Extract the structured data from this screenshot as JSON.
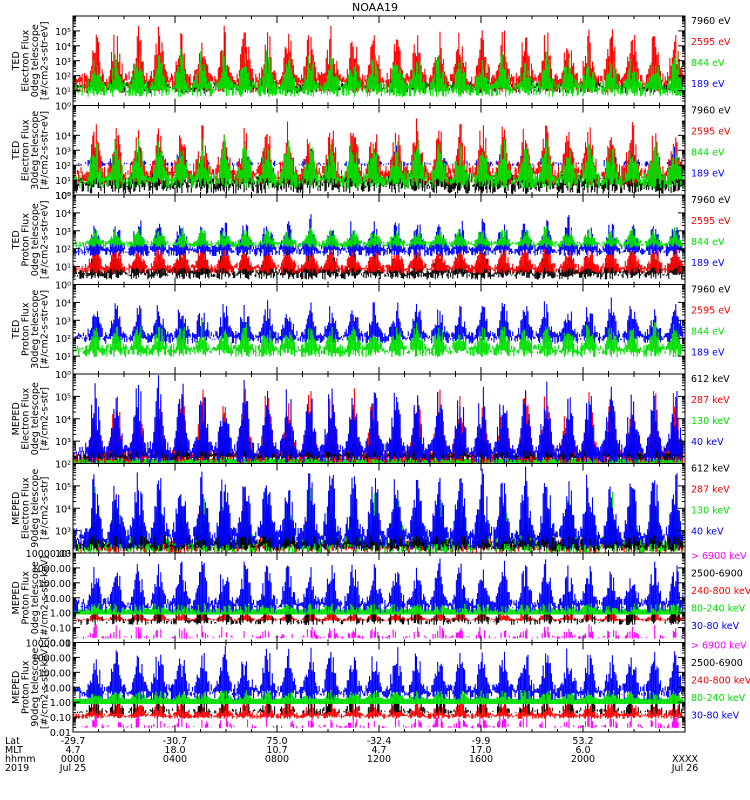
{
  "title": "NOAA19",
  "colors": {
    "black": "#000000",
    "red": "#ff0000",
    "green": "#00e000",
    "blue": "#0000ff",
    "magenta": "#ff00ff"
  },
  "chart_data": [
    {
      "type": "line",
      "ylabel": [
        "TED",
        "Electron Flux",
        "0deg telescope",
        "[#/cm2-s-str-eV]"
      ],
      "log": true,
      "ylim": [
        1,
        1000000
      ],
      "ticks": [
        {
          "v": 1,
          "label": "10⁰"
        },
        {
          "v": 10,
          "label": "10¹"
        },
        {
          "v": 100,
          "label": "10²"
        },
        {
          "v": 1000,
          "label": "10³"
        },
        {
          "v": 10000,
          "label": "10⁴"
        },
        {
          "v": 100000,
          "label": "10⁵"
        }
      ],
      "legend": [
        {
          "name": "7960 eV",
          "color": "#000000"
        },
        {
          "name": "2595 eV",
          "color": "#ff0000"
        },
        {
          "name": "844 eV",
          "color": "#00e000"
        },
        {
          "name": "189 eV",
          "color": "#0000ff"
        }
      ],
      "series": [
        {
          "color": "#000000",
          "base": 12,
          "peak": 400,
          "spread": 0.8
        },
        {
          "color": "#ff0000",
          "base": 20,
          "peak": 60000,
          "spread": 0.55
        },
        {
          "color": "#00e000",
          "base": 8,
          "peak": 2000,
          "spread": 0.6
        }
      ]
    },
    {
      "type": "line",
      "ylabel": [
        "TED",
        "Electron Flux",
        "30deg telescope",
        "[#/cm2-s-str-eV]"
      ],
      "log": true,
      "ylim": [
        1,
        1000000
      ],
      "ticks": [
        {
          "v": 1,
          "label": "10⁰"
        },
        {
          "v": 10,
          "label": "10¹"
        },
        {
          "v": 100,
          "label": "10²"
        },
        {
          "v": 1000,
          "label": "10³"
        },
        {
          "v": 10000,
          "label": "10⁴"
        }
      ],
      "legend": [
        {
          "name": "7960 eV",
          "color": "#000000"
        },
        {
          "name": "2595 eV",
          "color": "#ff0000"
        },
        {
          "name": "844 eV",
          "color": "#00e000"
        },
        {
          "name": "189 eV",
          "color": "#0000ff"
        }
      ],
      "series": [
        {
          "color": "#0000ff",
          "base": 100,
          "peak": 2000,
          "spread": 0.3,
          "sparse": true
        },
        {
          "color": "#000000",
          "base": 3,
          "peak": 300,
          "spread": 0.9
        },
        {
          "color": "#ff0000",
          "base": 12,
          "peak": 30000,
          "spread": 0.55
        },
        {
          "color": "#00e000",
          "base": 6,
          "peak": 3000,
          "spread": 0.6
        }
      ]
    },
    {
      "type": "line",
      "ylabel": [
        "TED",
        "Proton Flux",
        "0deg telescope",
        "[#/cm2-s-str-eV]"
      ],
      "log": true,
      "ylim": [
        1,
        100000
      ],
      "ticks": [
        {
          "v": 1,
          "label": "10⁰"
        },
        {
          "v": 10,
          "label": "10¹"
        },
        {
          "v": 100,
          "label": "10²"
        },
        {
          "v": 1000,
          "label": "10³"
        },
        {
          "v": 10000,
          "label": "10⁴"
        },
        {
          "v": 100000,
          "label": "10⁵"
        }
      ],
      "legend": [
        {
          "name": "7960 eV",
          "color": "#000000"
        },
        {
          "name": "2595 eV",
          "color": "#ff0000"
        },
        {
          "name": "844 eV",
          "color": "#00e000"
        },
        {
          "name": "189 eV",
          "color": "#0000ff"
        }
      ],
      "series": [
        {
          "color": "#000000",
          "base": 3,
          "peak": 60,
          "spread": 0.7
        },
        {
          "color": "#ff0000",
          "base": 6,
          "peak": 200,
          "spread": 0.5
        },
        {
          "color": "#0000ff",
          "base": 60,
          "peak": 4000,
          "spread": 0.5
        },
        {
          "color": "#00e000",
          "base": 150,
          "peak": 1200,
          "spread": 0.45,
          "dense": true
        }
      ]
    },
    {
      "type": "line",
      "ylabel": [
        "TED",
        "Proton Flux",
        "30deg telescope",
        "[#/cm2-s-str-eV]"
      ],
      "log": true,
      "ylim": [
        1,
        100000
      ],
      "ticks": [
        {
          "v": 1,
          "label": "10⁰"
        },
        {
          "v": 10,
          "label": "10¹"
        },
        {
          "v": 100,
          "label": "10²"
        },
        {
          "v": 1000,
          "label": "10³"
        },
        {
          "v": 10000,
          "label": "10⁴"
        }
      ],
      "legend": [
        {
          "name": "7960 eV",
          "color": "#000000"
        },
        {
          "name": "2595 eV",
          "color": "#ff0000"
        },
        {
          "name": "844 eV",
          "color": "#00e000"
        },
        {
          "name": "189 eV",
          "color": "#0000ff"
        }
      ],
      "series": [
        {
          "color": "#0000ff",
          "base": 80,
          "peak": 8000,
          "spread": 0.5
        },
        {
          "color": "#00e000",
          "base": 15,
          "peak": 400,
          "spread": 0.55,
          "dense": true
        }
      ]
    },
    {
      "type": "line",
      "ylabel": [
        "MEPED",
        "Electron Flux",
        "0deg telescope",
        "[#/cm2-s-str]"
      ],
      "log": true,
      "ylim": [
        100,
        1000000
      ],
      "ticks": [
        {
          "v": 100,
          "label": "10²"
        },
        {
          "v": 1000,
          "label": "10³"
        },
        {
          "v": 10000,
          "label": "10⁴"
        },
        {
          "v": 100000,
          "label": "10⁵"
        }
      ],
      "legend": [
        {
          "name": "612 keV",
          "color": "#000000"
        },
        {
          "name": "287 keV",
          "color": "#ff0000"
        },
        {
          "name": "130 keV",
          "color": "#00e000"
        },
        {
          "name": "40 keV",
          "color": "#0000ff"
        }
      ],
      "series": [
        {
          "color": "#00e000",
          "base": 130,
          "peak": 200,
          "spread": 0.15,
          "floor": true
        },
        {
          "color": "#ff0000",
          "base": 150,
          "peak": 200000,
          "spread": 0.25
        },
        {
          "color": "#000000",
          "base": 180,
          "peak": 1500,
          "spread": 0.5
        },
        {
          "color": "#0000ff",
          "base": 200,
          "peak": 300000,
          "spread": 0.4
        }
      ]
    },
    {
      "type": "line",
      "ylabel": [
        "MEPED",
        "Electron Flux",
        "90deg telescope",
        "[#/cm2-s-str]"
      ],
      "log": true,
      "ylim": [
        100,
        1000000
      ],
      "ticks": [
        {
          "v": 100,
          "label": "10²"
        },
        {
          "v": 1000,
          "label": "10³"
        },
        {
          "v": 10000,
          "label": "10⁴"
        },
        {
          "v": 100000,
          "label": "10⁵"
        }
      ],
      "legend": [
        {
          "name": "612 keV",
          "color": "#000000"
        },
        {
          "name": "287 keV",
          "color": "#ff0000"
        },
        {
          "name": "130 keV",
          "color": "#00e000"
        },
        {
          "name": "40 keV",
          "color": "#0000ff"
        }
      ],
      "series": [
        {
          "color": "#ff0000",
          "base": 150,
          "peak": 30000,
          "spread": 0.35
        },
        {
          "color": "#00e000",
          "base": 160,
          "peak": 50000,
          "spread": 0.4
        },
        {
          "color": "#000000",
          "base": 180,
          "peak": 5000,
          "spread": 0.55
        },
        {
          "color": "#0000ff",
          "base": 300,
          "peak": 400000,
          "spread": 0.45
        }
      ]
    },
    {
      "type": "line",
      "ylabel": [
        "MEPED",
        "Proton Flux",
        "0deg telescope",
        "[#/cm2-s-str-keV]"
      ],
      "log": true,
      "ylim": [
        0.01,
        10000
      ],
      "ticks": [
        {
          "v": 0.01,
          "label": "0.01"
        },
        {
          "v": 0.1,
          "label": "0.10"
        },
        {
          "v": 1,
          "label": "1.00"
        },
        {
          "v": 10,
          "label": "10.00"
        },
        {
          "v": 100,
          "label": "100.00"
        },
        {
          "v": 1000,
          "label": "1000.00"
        },
        {
          "v": 10000,
          "label": "10000.00"
        }
      ],
      "legend": [
        {
          "name": "> 6900 keV",
          "color": "#ff00ff"
        },
        {
          "name": "2500-6900",
          "color": "#000000"
        },
        {
          "name": "240-800 keV",
          "color": "#ff0000"
        },
        {
          "name": "80-240 keV",
          "color": "#00e000"
        },
        {
          "name": "30-80 keV",
          "color": "#0000ff"
        }
      ],
      "series": [
        {
          "color": "#ff00ff",
          "base": 0.02,
          "peak": 0.15,
          "spread": 0.3,
          "sparse": true
        },
        {
          "color": "#ff0000",
          "base": 0.3,
          "peak": 1.5,
          "spread": 0.3,
          "dense": true
        },
        {
          "color": "#000000",
          "base": 0.2,
          "peak": 5,
          "spread": 0.4,
          "sparse": true
        },
        {
          "color": "#00e000",
          "base": 1.2,
          "peak": 20,
          "spread": 0.25,
          "floor": true
        },
        {
          "color": "#0000ff",
          "base": 2,
          "peak": 1500,
          "spread": 0.5
        }
      ]
    },
    {
      "type": "line",
      "ylabel": [
        "MEPED",
        "Proton Flux",
        "90deg telescope",
        "[#/cm2-s-str-keV]"
      ],
      "log": true,
      "ylim": [
        0.01,
        10000
      ],
      "ticks": [
        {
          "v": 0.01,
          "label": "0.01"
        },
        {
          "v": 0.1,
          "label": "0.10"
        },
        {
          "v": 1,
          "label": "1.00"
        },
        {
          "v": 10,
          "label": "10.00"
        },
        {
          "v": 100,
          "label": "100.00"
        },
        {
          "v": 1000,
          "label": "1000.00"
        },
        {
          "v": 10000,
          "label": "10000.00"
        }
      ],
      "legend": [
        {
          "name": "> 6900 keV",
          "color": "#ff00ff"
        },
        {
          "name": "2500-6900",
          "color": "#000000"
        },
        {
          "name": "240-800 keV",
          "color": "#ff0000"
        },
        {
          "name": "80-240 keV",
          "color": "#00e000"
        },
        {
          "name": "30-80 keV",
          "color": "#0000ff"
        }
      ],
      "series": [
        {
          "color": "#ff00ff",
          "base": 0.02,
          "peak": 0.15,
          "spread": 0.3,
          "sparse": true
        },
        {
          "color": "#ff0000",
          "base": 0.1,
          "peak": 1.5,
          "spread": 0.35,
          "dense": true
        },
        {
          "color": "#000000",
          "base": 0.2,
          "peak": 5,
          "spread": 0.4,
          "sparse": true
        },
        {
          "color": "#00e000",
          "base": 1.2,
          "peak": 20,
          "spread": 0.25,
          "floor": true
        },
        {
          "color": "#0000ff",
          "base": 3,
          "peak": 3000,
          "spread": 0.5
        }
      ]
    }
  ],
  "x_axis": {
    "row_labels": [
      "Lat",
      "MLT",
      "hhmm",
      "2019"
    ],
    "ticks": [
      {
        "lat": "-29.7",
        "mlt": "4.7",
        "time": "0000",
        "date": "Jul 25"
      },
      {
        "lat": "-30.7",
        "mlt": "18.0",
        "time": "0400",
        "date": ""
      },
      {
        "lat": "75.0",
        "mlt": "10.7",
        "time": "0800",
        "date": ""
      },
      {
        "lat": "-32.4",
        "mlt": "4.7",
        "time": "1200",
        "date": ""
      },
      {
        "lat": "-9.9",
        "mlt": "17.0",
        "time": "1600",
        "date": ""
      },
      {
        "lat": "53.2",
        "mlt": "6.0",
        "time": "2000",
        "date": ""
      },
      {
        "lat": "",
        "mlt": "",
        "time": "XXXX",
        "date": "Jul 26"
      }
    ]
  }
}
